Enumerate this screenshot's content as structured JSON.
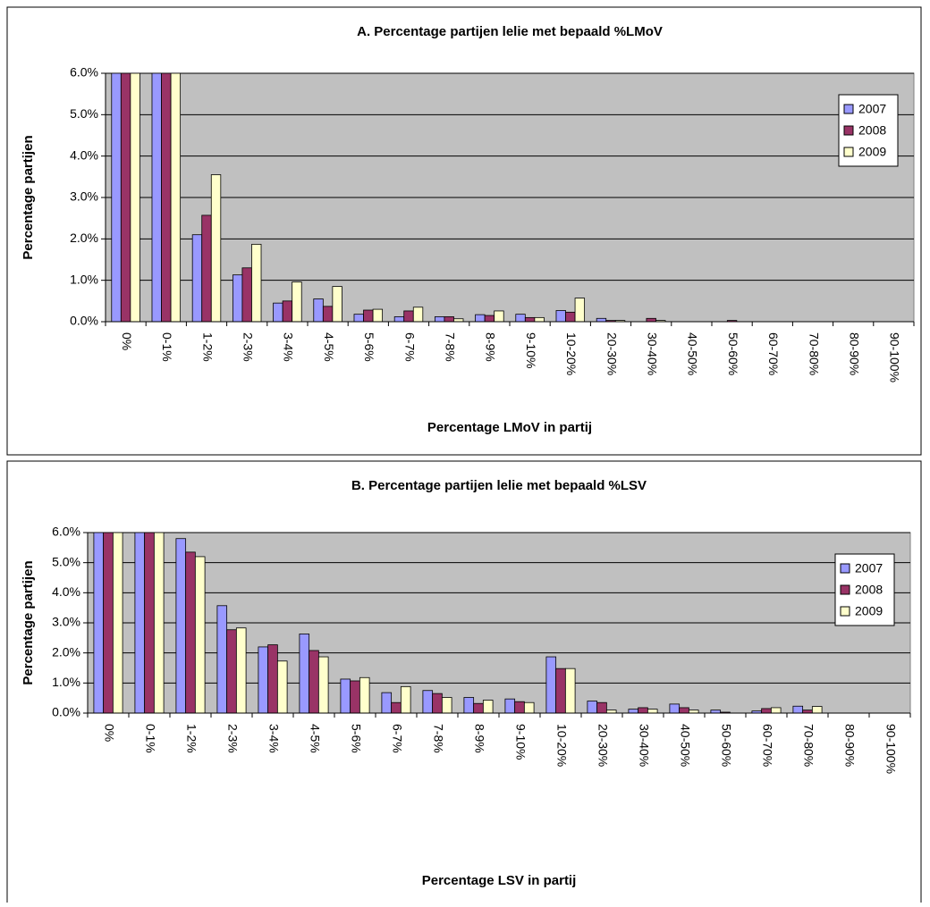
{
  "chart_data": [
    {
      "type": "bar",
      "title": "A. Percentage partijen lelie met bepaald %LMoV",
      "x_label": "Percentage LMoV in partij",
      "y_label": "Percentage partijen",
      "categories": [
        "0%",
        "0-1%",
        "1-2%",
        "2-3%",
        "3-4%",
        "4-5%",
        "5-6%",
        "6-7%",
        "7-8%",
        "8-9%",
        "9-10%",
        "10-20%",
        "20-30%",
        "30-40%",
        "40-50%",
        "50-60%",
        "60-70%",
        "70-80%",
        "80-90%",
        "90-100%"
      ],
      "series": [
        {
          "name": "2007",
          "color": "#9999ff",
          "values": [
            6,
            6,
            2.1,
            1.13,
            0.45,
            0.55,
            0.18,
            0.12,
            0.12,
            0.17,
            0.18,
            0.27,
            0.08,
            0,
            0,
            0,
            0,
            0,
            0,
            0
          ]
        },
        {
          "name": "2008",
          "color": "#993366",
          "values": [
            6,
            6,
            2.57,
            1.3,
            0.5,
            0.37,
            0.28,
            0.26,
            0.12,
            0.15,
            0.1,
            0.23,
            0.03,
            0.08,
            0,
            0.03,
            0,
            0,
            0,
            0
          ]
        },
        {
          "name": "2009",
          "color": "#ffffcc",
          "values": [
            6,
            6,
            3.55,
            1.87,
            0.96,
            0.85,
            0.3,
            0.35,
            0.07,
            0.26,
            0.1,
            0.57,
            0.03,
            0.03,
            0,
            0,
            0,
            0,
            0,
            0
          ]
        }
      ],
      "ylim": [
        0,
        6
      ],
      "yticks": [
        {
          "value": 0,
          "label": "0.0%"
        },
        {
          "value": 1,
          "label": "1.0%"
        },
        {
          "value": 2,
          "label": "2.0%"
        },
        {
          "value": 3,
          "label": "3.0%"
        },
        {
          "value": 4,
          "label": "4.0%"
        },
        {
          "value": 5,
          "label": "5.0%"
        },
        {
          "value": 6,
          "label": "6.0%"
        }
      ],
      "grid": true,
      "legend": "top-right"
    },
    {
      "type": "bar",
      "title": "B. Percentage partijen lelie met bepaald %LSV",
      "x_label": "Percentage LSV in partij",
      "y_label": "Percentage partijen",
      "categories": [
        "0%",
        "0-1%",
        "1-2%",
        "2-3%",
        "3-4%",
        "4-5%",
        "5-6%",
        "6-7%",
        "7-8%",
        "8-9%",
        "9-10%",
        "10-20%",
        "20-30%",
        "30-40%",
        "40-50%",
        "50-60%",
        "60-70%",
        "70-80%",
        "80-90%",
        "90-100%"
      ],
      "series": [
        {
          "name": "2007",
          "color": "#9999ff",
          "values": [
            6,
            6,
            5.8,
            3.57,
            2.2,
            2.63,
            1.13,
            0.68,
            0.75,
            0.52,
            0.47,
            1.87,
            0.4,
            0.13,
            0.3,
            0.1,
            0.07,
            0.23,
            0,
            0
          ]
        },
        {
          "name": "2008",
          "color": "#993366",
          "values": [
            6,
            6,
            5.35,
            2.77,
            2.27,
            2.08,
            1.07,
            0.35,
            0.65,
            0.32,
            0.38,
            1.48,
            0.35,
            0.18,
            0.18,
            0.03,
            0.15,
            0.1,
            0,
            0
          ]
        },
        {
          "name": "2009",
          "color": "#ffffcc",
          "values": [
            6,
            6,
            5.2,
            2.83,
            1.73,
            1.87,
            1.18,
            0.88,
            0.52,
            0.43,
            0.35,
            1.48,
            0.1,
            0.13,
            0.1,
            0,
            0.18,
            0.22,
            0,
            0
          ]
        }
      ],
      "ylim": [
        0,
        6
      ],
      "yticks": [
        {
          "value": 0,
          "label": "0.0%"
        },
        {
          "value": 1,
          "label": "1.0%"
        },
        {
          "value": 2,
          "label": "2.0%"
        },
        {
          "value": 3,
          "label": "3.0%"
        },
        {
          "value": 4,
          "label": "4.0%"
        },
        {
          "value": 5,
          "label": "5.0%"
        },
        {
          "value": 6,
          "label": "6.0%"
        }
      ],
      "grid": true,
      "legend": "top-right"
    }
  ]
}
